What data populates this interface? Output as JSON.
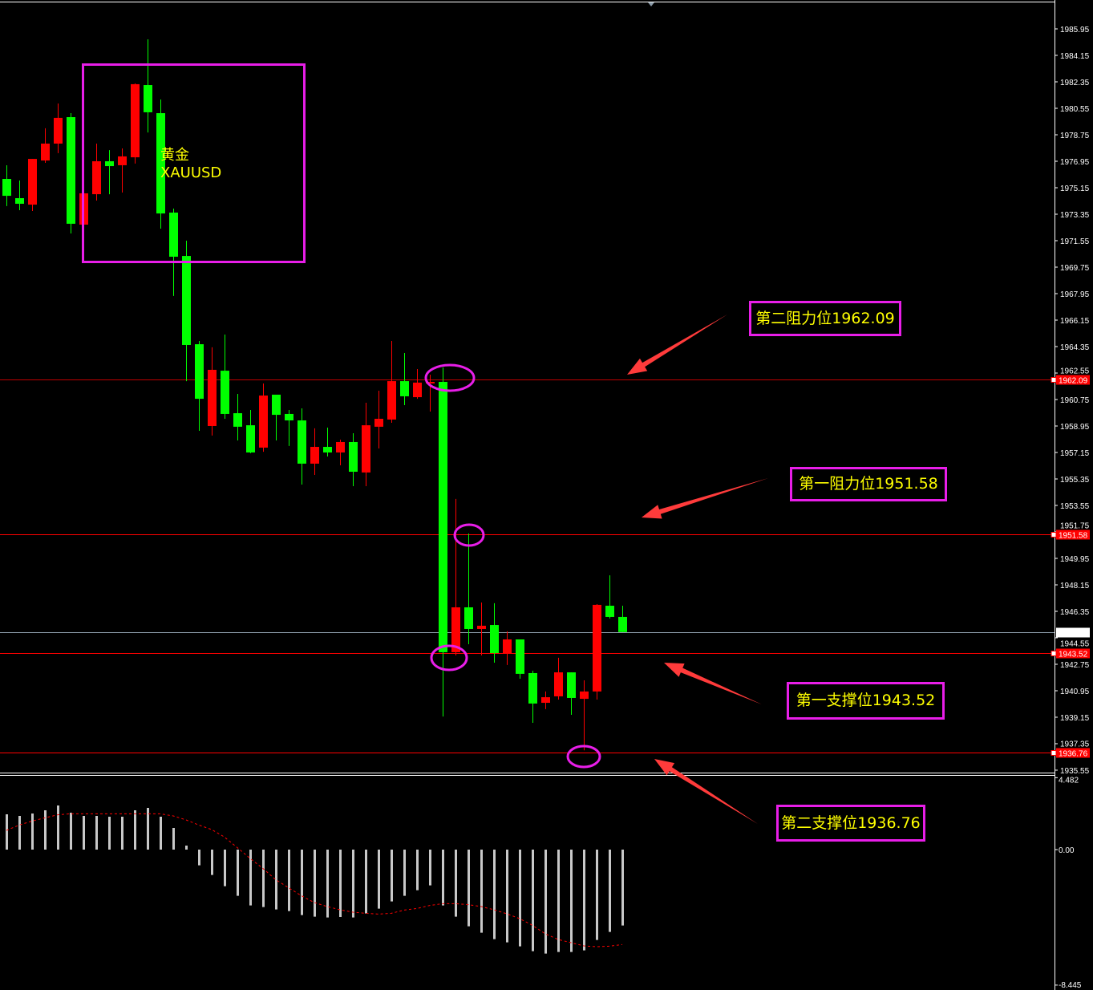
{
  "symbol": {
    "name_cn": "黄金",
    "ticker": "XAUUSD"
  },
  "colors": {
    "bull": "#ff0000",
    "bear": "#00ff00",
    "level_line": "#ff0000",
    "current_line": "#8a9aa8",
    "annotation": "#e81ee8",
    "annotation_text": "#ffff00",
    "arrow": "#ff3b3b",
    "histogram": "#c8c8c8",
    "signal": "#ff0000"
  },
  "annotations": [
    {
      "label": "第二阻力位1962.09",
      "level": 1962.09
    },
    {
      "label": "第一阻力位1951.58",
      "level": 1951.58
    },
    {
      "label": "第一支撑位1943.52",
      "level": 1943.52
    },
    {
      "label": "第二支撑位1936.76",
      "level": 1936.76
    }
  ],
  "chart_data": {
    "type": "candlestick",
    "title": "",
    "convention": "red = up, green = down",
    "ylim": [
      1935.55,
      1985.95
    ],
    "y_ticks": [
      "1985.95",
      "1984.15",
      "1982.35",
      "1980.55",
      "1978.75",
      "1976.95",
      "1975.15",
      "1973.35",
      "1971.55",
      "1969.75",
      "1967.95",
      "1966.15",
      "1964.35",
      "1962.55",
      "1960.75",
      "1958.95",
      "1957.15",
      "1955.35",
      "1953.55",
      "1951.75",
      "1949.95",
      "1948.15",
      "1946.35",
      "1944.55",
      "1942.75",
      "1940.95",
      "1939.15",
      "1937.35",
      "1935.55"
    ],
    "candles_ohlc": [
      [
        1975.75,
        1976.68,
        1973.9,
        1974.6
      ],
      [
        1974.44,
        1975.64,
        1973.62,
        1974.06
      ],
      [
        1974.0,
        1977.11,
        1973.57,
        1977.11
      ],
      [
        1977.0,
        1979.19,
        1976.84,
        1978.15
      ],
      [
        1978.15,
        1980.88,
        1977.5,
        1979.9
      ],
      [
        1979.95,
        1980.22,
        1972.04,
        1972.7
      ],
      [
        1972.64,
        1974.77,
        1972.64,
        1974.77
      ],
      [
        1974.71,
        1978.15,
        1974.28,
        1976.95
      ],
      [
        1976.95,
        1977.71,
        1974.71,
        1976.62
      ],
      [
        1976.68,
        1977.82,
        1974.82,
        1977.28
      ],
      [
        1977.22,
        1982.24,
        1976.79,
        1982.19
      ],
      [
        1982.13,
        1985.24,
        1978.91,
        1980.28
      ],
      [
        1980.22,
        1981.15,
        1972.37,
        1973.4
      ],
      [
        1973.46,
        1973.73,
        1967.79,
        1970.46
      ],
      [
        1970.51,
        1971.55,
        1962.0,
        1964.46
      ],
      [
        1964.51,
        1964.73,
        1958.62,
        1960.8
      ],
      [
        1958.95,
        1964.3,
        1958.3,
        1962.77
      ],
      [
        1962.71,
        1965.17,
        1959.44,
        1959.77
      ],
      [
        1959.82,
        1961.13,
        1957.97,
        1958.9
      ],
      [
        1959.0,
        1960.04,
        1957.1,
        1957.15
      ],
      [
        1957.48,
        1961.84,
        1957.2,
        1961.02
      ],
      [
        1961.08,
        1961.08,
        1957.97,
        1959.71
      ],
      [
        1959.77,
        1960.04,
        1957.59,
        1959.33
      ],
      [
        1959.33,
        1960.15,
        1954.97,
        1956.39
      ],
      [
        1956.39,
        1958.79,
        1955.62,
        1957.53
      ],
      [
        1957.53,
        1958.84,
        1956.88,
        1957.15
      ],
      [
        1957.15,
        1958.02,
        1956.28,
        1957.86
      ],
      [
        1957.86,
        1958.46,
        1954.86,
        1955.84
      ],
      [
        1955.79,
        1960.53,
        1954.86,
        1959.0
      ],
      [
        1958.9,
        1961.35,
        1957.42,
        1959.44
      ],
      [
        1959.39,
        1964.73,
        1959.17,
        1962.0
      ],
      [
        1962.0,
        1963.91,
        1960.37,
        1960.97
      ],
      [
        1960.91,
        1962.82,
        1960.8,
        1961.9
      ],
      [
        1961.84,
        1962.44,
        1959.93,
        1961.95
      ],
      [
        1961.95,
        1962.93,
        1939.2,
        1943.57
      ],
      [
        1943.57,
        1953.99,
        1943.35,
        1946.62
      ],
      [
        1946.62,
        1951.64,
        1944.11,
        1945.15
      ],
      [
        1945.15,
        1946.95,
        1943.35,
        1945.37
      ],
      [
        1945.42,
        1946.9,
        1942.86,
        1943.51
      ],
      [
        1943.51,
        1944.99,
        1942.7,
        1944.44
      ],
      [
        1944.44,
        1944.44,
        1941.77,
        1942.1
      ],
      [
        1942.15,
        1942.31,
        1938.77,
        1940.08
      ],
      [
        1940.13,
        1940.9,
        1939.7,
        1940.51
      ],
      [
        1940.57,
        1943.19,
        1940.35,
        1942.2
      ],
      [
        1942.2,
        1942.2,
        1939.31,
        1940.46
      ],
      [
        1940.4,
        1941.66,
        1936.9,
        1940.9
      ],
      [
        1940.9,
        1946.84,
        1940.35,
        1946.79
      ],
      [
        1946.73,
        1948.8,
        1945.86,
        1945.97
      ],
      [
        1945.97,
        1946.73,
        1944.94,
        1944.94
      ]
    ],
    "levels": [
      {
        "value": 1962.09,
        "label": "1962.09",
        "kind": "resistance"
      },
      {
        "value": 1951.58,
        "label": "1951.58",
        "kind": "resistance"
      },
      {
        "value": 1943.52,
        "label": "1943.52",
        "kind": "support"
      },
      {
        "value": 1936.76,
        "label": "1936.76",
        "kind": "support"
      }
    ],
    "current_price": {
      "value": 1944.94,
      "label": "1944.94"
    },
    "indicator": {
      "type": "histogram+signal",
      "ylim": [
        -8.445,
        4.482
      ],
      "y_ticks": [
        "4.482",
        "0.00",
        "-8.445"
      ],
      "histogram": [
        2.2,
        2.1,
        2.25,
        2.45,
        2.75,
        2.3,
        2.1,
        2.1,
        2.05,
        2.05,
        2.45,
        2.6,
        2.05,
        1.35,
        0.25,
        -0.98,
        -1.58,
        -2.28,
        -2.88,
        -3.48,
        -3.58,
        -3.73,
        -3.83,
        -4.08,
        -4.18,
        -4.23,
        -4.2,
        -4.23,
        -3.98,
        -3.68,
        -3.23,
        -2.88,
        -2.53,
        -2.23,
        -3.48,
        -4.18,
        -4.78,
        -5.18,
        -5.58,
        -5.78,
        -6.03,
        -6.33,
        -6.48,
        -6.38,
        -6.38,
        -6.28,
        -5.63,
        -5.13,
        -4.73
      ],
      "signal": [
        1.2,
        1.53,
        1.78,
        1.98,
        2.17,
        2.23,
        2.23,
        2.23,
        2.23,
        2.23,
        2.23,
        2.23,
        2.23,
        2.1,
        1.85,
        1.53,
        1.25,
        0.78,
        0.12,
        -0.55,
        -1.18,
        -1.88,
        -2.38,
        -2.88,
        -3.3,
        -3.55,
        -3.75,
        -3.9,
        -3.97,
        -4.02,
        -3.97,
        -3.77,
        -3.67,
        -3.48,
        -3.37,
        -3.37,
        -3.43,
        -3.55,
        -3.75,
        -4.0,
        -4.3,
        -4.72,
        -5.25,
        -5.6,
        -5.8,
        -6.0,
        -6.05,
        -6.02,
        -5.92
      ]
    }
  }
}
